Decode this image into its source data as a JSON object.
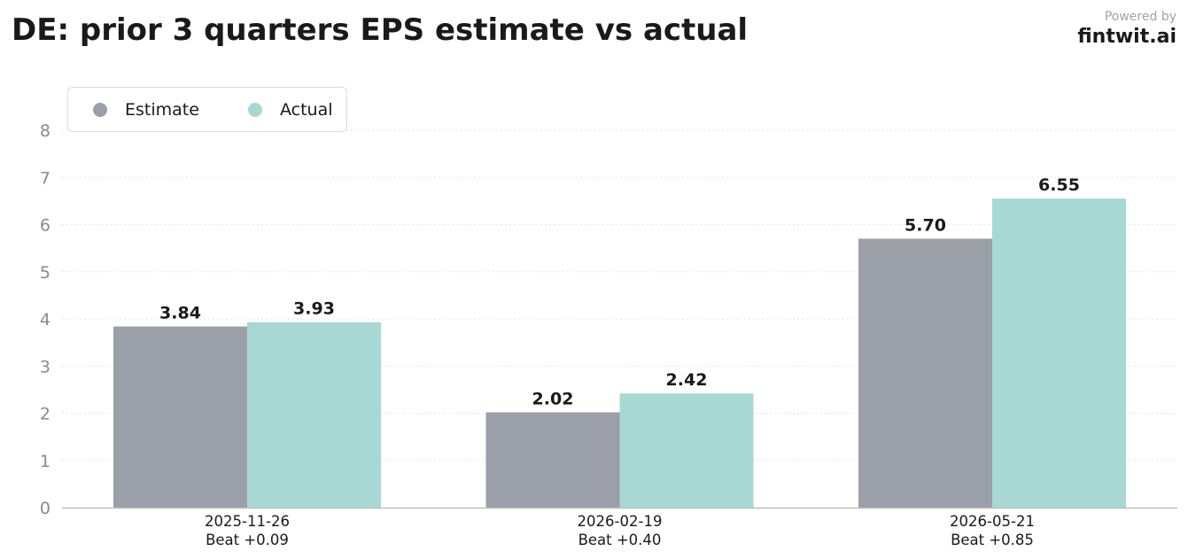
{
  "header": {
    "title": "DE: prior 3 quarters EPS estimate vs actual",
    "powered_by": "Powered by",
    "brand": "fintwit.ai"
  },
  "colors": {
    "estimate": "#9b9fa7",
    "actual": "#a8d8d4",
    "grid": "#e4e4e4",
    "axis": "#bfbfbf",
    "tick_text": "#8a8a8a"
  },
  "chart_data": {
    "type": "bar",
    "title": "DE: prior 3 quarters EPS estimate vs actual",
    "categories": [
      "2025-11-26",
      "2026-02-19",
      "2026-05-21"
    ],
    "category_sublabels": [
      "Beat +0.09",
      "Beat +0.40",
      "Beat +0.85"
    ],
    "series": [
      {
        "name": "Estimate",
        "values": [
          3.84,
          2.02,
          5.7
        ],
        "labels": [
          "3.84",
          "2.02",
          "5.70"
        ]
      },
      {
        "name": "Actual",
        "values": [
          3.93,
          2.42,
          6.55
        ],
        "labels": [
          "3.93",
          "2.42",
          "6.55"
        ]
      }
    ],
    "ylim": [
      0,
      8
    ],
    "yticks": [
      "0",
      "1",
      "2",
      "3",
      "4",
      "5",
      "6",
      "7",
      "8"
    ],
    "grid": true,
    "legend_position": "top-left"
  }
}
